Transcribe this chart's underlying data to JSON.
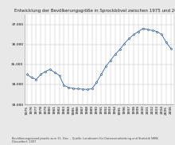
{
  "title": "Entwicklung der Bevölkerungsgröße in Sprockbövel zwischen 1975 und 2006",
  "footnote": "Bevölkerungsstand jeweils zum 31. Dez. – Quelle: Landesamt für Datenverarbeitung und Statistik NRW, Düsseldorf, 2007",
  "years": [
    1975,
    1976,
    1977,
    1978,
    1979,
    1980,
    1981,
    1982,
    1983,
    1984,
    1985,
    1986,
    1987,
    1988,
    1989,
    1990,
    1991,
    1992,
    1993,
    1994,
    1995,
    1996,
    1997,
    1998,
    1999,
    2000,
    2001,
    2002,
    2003,
    2004,
    2005,
    2006
  ],
  "values": [
    34500,
    34350,
    34250,
    34500,
    34650,
    34750,
    34600,
    34450,
    33950,
    33850,
    33800,
    33780,
    33760,
    33750,
    33780,
    34100,
    34500,
    34900,
    35200,
    35500,
    35750,
    36050,
    36300,
    36500,
    36650,
    36800,
    36750,
    36700,
    36650,
    36500,
    36100,
    35800
  ],
  "ylim": [
    33000,
    37500
  ],
  "yticks": [
    33000,
    34000,
    35000,
    36000,
    37000
  ],
  "ytick_labels": [
    "33.000",
    "34.000",
    "35.000",
    "36.000",
    "37.000"
  ],
  "line_color": "#3060a0",
  "marker": "D",
  "marker_size": 1.3,
  "bg_color": "#e8e8e8",
  "plot_bg_color": "#ffffff",
  "grid_color": "#bbbbbb",
  "title_fontsize": 4.0,
  "tick_fontsize": 3.2,
  "footnote_fontsize": 2.5,
  "linewidth": 0.6
}
